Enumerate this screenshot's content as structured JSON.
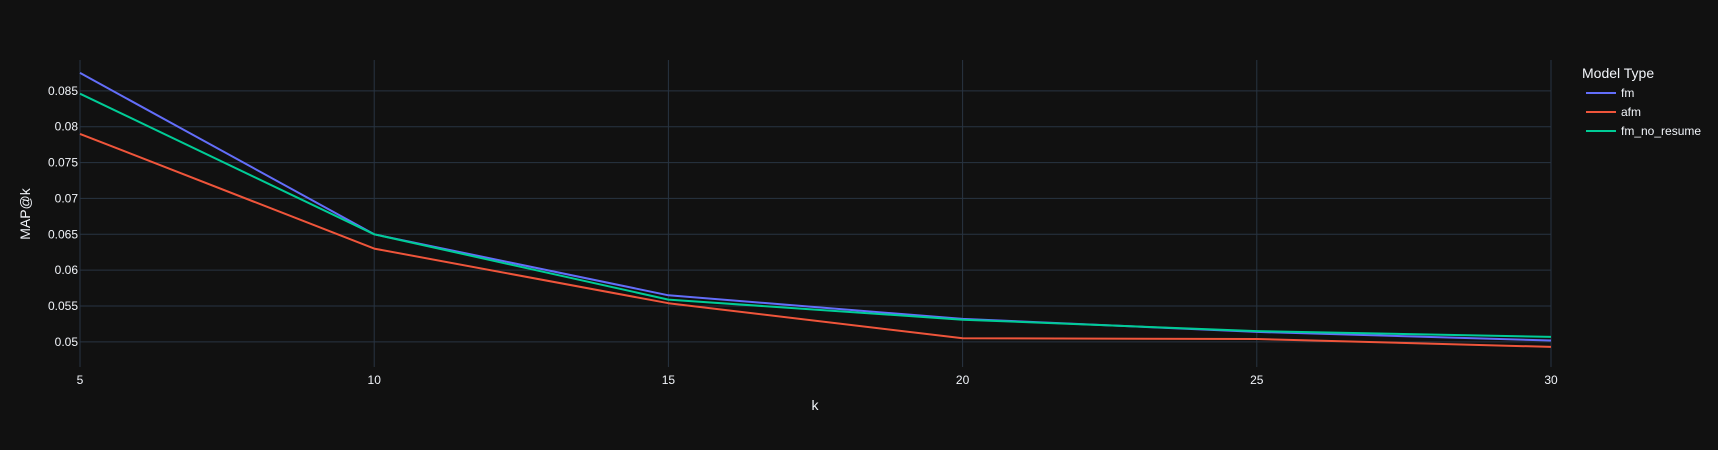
{
  "chart_data": {
    "type": "line",
    "title": "",
    "xlabel": "k",
    "ylabel": "MAP@k",
    "x": [
      5,
      10,
      15,
      20,
      25,
      30
    ],
    "xlim": [
      5,
      30
    ],
    "ylim": [
      0.0465,
      0.0893
    ],
    "x_ticks": [
      5,
      10,
      15,
      20,
      25,
      30
    ],
    "y_ticks": [
      0.05,
      0.055,
      0.06,
      0.065,
      0.07,
      0.075,
      0.08,
      0.085
    ],
    "grid": true,
    "legend": {
      "title": "Model Type",
      "placement": "top-right outside"
    },
    "series": [
      {
        "name": "fm",
        "color": "#636efa",
        "values": [
          0.0875,
          0.065,
          0.0565,
          0.0532,
          0.0514,
          0.0502
        ]
      },
      {
        "name": "afm",
        "color": "#ef553b",
        "values": [
          0.079,
          0.063,
          0.0554,
          0.0505,
          0.0504,
          0.0493
        ]
      },
      {
        "name": "fm_no_resume",
        "color": "#00cc96",
        "values": [
          0.0846,
          0.065,
          0.0559,
          0.0531,
          0.0515,
          0.0507
        ]
      }
    ],
    "colors": {
      "background": "#111111",
      "grid": "#283442",
      "text": "#f2f5fa"
    }
  }
}
